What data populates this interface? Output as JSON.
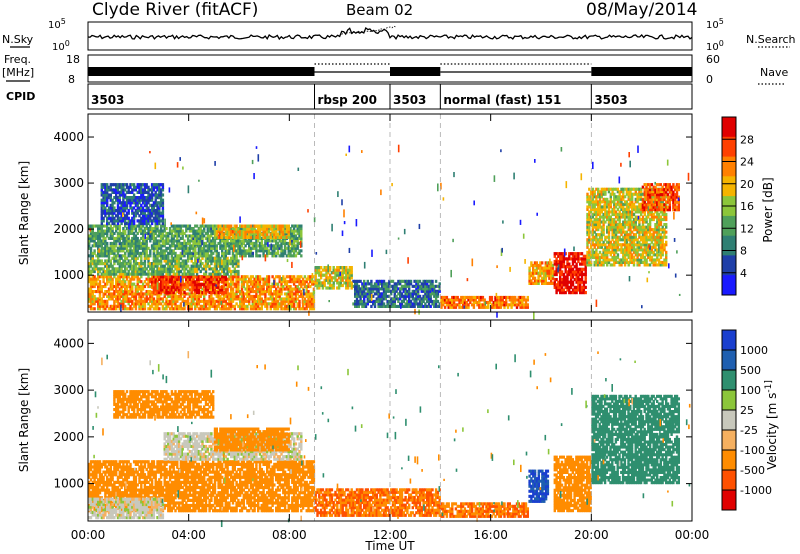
{
  "header": {
    "station": "Clyde River (fitACF)",
    "beam": "Beam 02",
    "date": "08/May/2014"
  },
  "nsky_panel": {
    "left_label": "N.Sky",
    "left_ticks": [
      "10^5",
      "10^0"
    ],
    "right_label": "N.Search",
    "right_ticks": [
      "10^5",
      "10^0"
    ]
  },
  "freq_panel": {
    "left_label_1": "Freq.",
    "left_label_2": "[MHz]",
    "left_ticks": [
      "18",
      "8"
    ],
    "right_label": "Nave",
    "right_ticks": [
      "60",
      "0"
    ]
  },
  "cpid_panel": {
    "label": "CPID",
    "segments": [
      {
        "name": "3503",
        "start_hr": 0,
        "end_hr": 9
      },
      {
        "name": "rbsp 200",
        "start_hr": 9,
        "end_hr": 12
      },
      {
        "name": "3503",
        "start_hr": 12,
        "end_hr": 14
      },
      {
        "name": "normal (fast) 151",
        "start_hr": 14,
        "end_hr": 20
      },
      {
        "name": "3503",
        "start_hr": 20,
        "end_hr": 24
      }
    ]
  },
  "x_axis": {
    "label": "Time UT",
    "ticks": [
      "00:00",
      "04:00",
      "08:00",
      "12:00",
      "16:00",
      "20:00",
      "00:00"
    ]
  },
  "colors": {
    "power_scale": [
      "#1a1aff",
      "#1f3fa8",
      "#2f7f73",
      "#4fa05a",
      "#8cc63a",
      "#f5b400",
      "#ff8000",
      "#ff4000",
      "#e00000"
    ],
    "velocity_scale": [
      "#e00000",
      "#ff5000",
      "#ff8c00",
      "#f5b060",
      "#c8c8bc",
      "#8cc63a",
      "#2f8f6f",
      "#1f5fb0",
      "#1a3fcf"
    ]
  },
  "chart_data": [
    {
      "type": "heatmap",
      "name": "power",
      "ylabel": "Slant Range [km]",
      "ylim": [
        200,
        4500
      ],
      "yticks": [
        "1000",
        "2000",
        "3000",
        "4000"
      ],
      "xlim_hr": [
        0,
        24
      ],
      "colorbar": {
        "label": "Power [dB]",
        "ticks": [
          "4",
          "8",
          "12",
          "16",
          "20",
          "24",
          "28"
        ]
      },
      "regions": [
        {
          "t0": 0.0,
          "t1": 9.0,
          "r0": 250,
          "r1": 1000,
          "value": 22
        },
        {
          "t0": 2.5,
          "t1": 5.5,
          "r0": 600,
          "r1": 1000,
          "value": 28
        },
        {
          "t0": 0.0,
          "t1": 6.0,
          "r0": 1000,
          "r1": 1400,
          "value": 14
        },
        {
          "t0": 0.0,
          "t1": 8.5,
          "r0": 1400,
          "r1": 2100,
          "value": 12
        },
        {
          "t0": 5.0,
          "t1": 8.0,
          "r0": 1800,
          "r1": 2100,
          "value": 20
        },
        {
          "t0": 0.5,
          "t1": 3.0,
          "r0": 2100,
          "r1": 3000,
          "value": 6
        },
        {
          "t0": 9.0,
          "t1": 10.5,
          "r0": 700,
          "r1": 1200,
          "value": 18
        },
        {
          "t0": 10.5,
          "t1": 14.0,
          "r0": 300,
          "r1": 900,
          "value": 8
        },
        {
          "t0": 14.0,
          "t1": 17.5,
          "r0": 280,
          "r1": 550,
          "value": 24
        },
        {
          "t0": 17.5,
          "t1": 18.5,
          "r0": 800,
          "r1": 1300,
          "value": 22
        },
        {
          "t0": 18.5,
          "t1": 19.8,
          "r0": 600,
          "r1": 1500,
          "value": 30
        },
        {
          "t0": 19.8,
          "t1": 23.0,
          "r0": 1200,
          "r1": 2900,
          "value": 18
        },
        {
          "t0": 22.0,
          "t1": 23.5,
          "r0": 2400,
          "r1": 3000,
          "value": 26
        }
      ]
    },
    {
      "type": "heatmap",
      "name": "velocity",
      "ylabel": "Slant Range [km]",
      "ylim": [
        200,
        4500
      ],
      "yticks": [
        "1000",
        "2000",
        "3000",
        "4000"
      ],
      "xlim_hr": [
        0,
        24
      ],
      "colorbar": {
        "label": "Velocity [m s^-1]",
        "ticks": [
          "1000",
          "500",
          "100",
          "25",
          "-25",
          "-100",
          "-500",
          "-1000"
        ]
      },
      "regions": [
        {
          "t0": 0.0,
          "t1": 9.0,
          "r0": 400,
          "r1": 1500,
          "value": -300
        },
        {
          "t0": 0.0,
          "t1": 3.0,
          "r0": 250,
          "r1": 700,
          "value": 0
        },
        {
          "t0": 3.0,
          "t1": 8.5,
          "r0": 1500,
          "r1": 2100,
          "value": 0
        },
        {
          "t0": 5.0,
          "t1": 8.0,
          "r0": 1700,
          "r1": 2200,
          "value": -150
        },
        {
          "t0": 1.0,
          "t1": 5.0,
          "r0": 2400,
          "r1": 3000,
          "value": -200
        },
        {
          "t0": 9.0,
          "t1": 14.0,
          "r0": 300,
          "r1": 900,
          "value": -500
        },
        {
          "t0": 14.0,
          "t1": 17.5,
          "r0": 280,
          "r1": 600,
          "value": -500
        },
        {
          "t0": 17.5,
          "t1": 18.3,
          "r0": 600,
          "r1": 1300,
          "value": 1000
        },
        {
          "t0": 18.5,
          "t1": 20.0,
          "r0": 400,
          "r1": 1600,
          "value": -300
        },
        {
          "t0": 20.0,
          "t1": 23.5,
          "r0": 1000,
          "r1": 2900,
          "value": 300
        }
      ]
    }
  ]
}
